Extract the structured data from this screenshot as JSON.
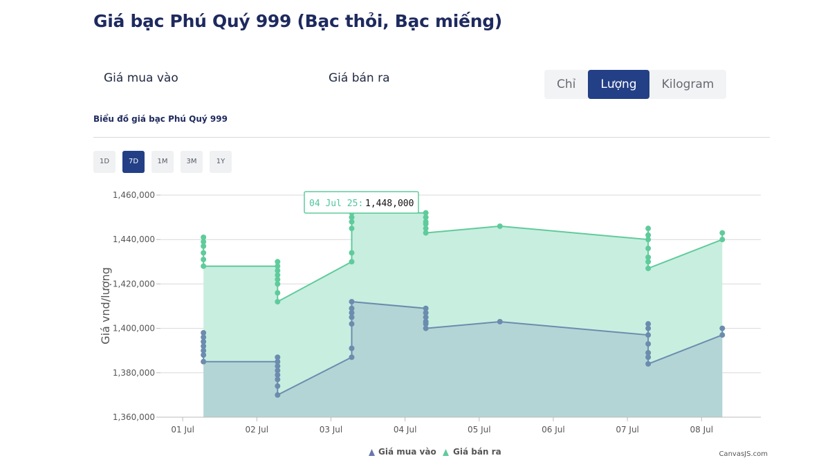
{
  "page": {
    "title": "Giá bạc Phú Quý 999 (Bạc thỏi, Bạc miếng)",
    "buy_label": "Giá mua vào",
    "sell_label": "Giá bán ra",
    "units": [
      "Chỉ",
      "Lượng",
      "Kilogram"
    ],
    "active_unit": "Lượng",
    "chart_subtitle": "Biểu đồ giá bạc Phú Quý 999",
    "ranges": [
      "1D",
      "7D",
      "1M",
      "3M",
      "1Y"
    ],
    "active_range": "7D",
    "credit": "CanvasJS.com"
  },
  "colors": {
    "buy": "#6b8cae",
    "buy_fill": "#b1d2d4",
    "sell": "#5fcb9b",
    "sell_fill": "#c8eee0",
    "active": "#233f86",
    "buy_marker": "#6a77ad"
  },
  "chart_data": {
    "type": "area",
    "title": "",
    "xlabel": "",
    "ylabel": "Giá vnd/lượng",
    "ylim": [
      1360000,
      1460000
    ],
    "yticks": [
      1360000,
      1380000,
      1400000,
      1420000,
      1440000,
      1460000
    ],
    "ytick_labels": [
      "1,360,000",
      "1,380,000",
      "1,400,000",
      "1,420,000",
      "1,440,000",
      "1,460,000"
    ],
    "xlim": [
      0.7,
      8.8
    ],
    "xticks": [
      1,
      2,
      3,
      4,
      5,
      6,
      7,
      8
    ],
    "xtick_labels": [
      "01 Jul",
      "02 Jul",
      "03 Jul",
      "04 Jul",
      "05 Jul",
      "06 Jul",
      "07 Jul",
      "08 Jul"
    ],
    "legend_position": "bottom",
    "grid": true,
    "series": [
      {
        "name": "Giá bán ra",
        "x": [
          1.28,
          1.28,
          1.28,
          1.28,
          1.28,
          1.28,
          2.28,
          2.28,
          2.28,
          2.28,
          2.28,
          2.28,
          2.28,
          2.28,
          3.28,
          3.28,
          3.28,
          3.28,
          3.28,
          3.28,
          4.28,
          4.28,
          4.28,
          4.28,
          4.28,
          4.28,
          5.28,
          7.28,
          7.28,
          7.28,
          7.28,
          7.28,
          7.28,
          7.28,
          8.28,
          8.28
        ],
        "values": [
          1441000,
          1439000,
          1437000,
          1434000,
          1431000,
          1428000,
          1428000,
          1430000,
          1426000,
          1424000,
          1422000,
          1420000,
          1416000,
          1412000,
          1430000,
          1434000,
          1445000,
          1448000,
          1450000,
          1452000,
          1452000,
          1450000,
          1448000,
          1447000,
          1445000,
          1443000,
          1446000,
          1440000,
          1442000,
          1445000,
          1436000,
          1432000,
          1430000,
          1427000,
          1440000,
          1443000
        ]
      },
      {
        "name": "Giá mua vào",
        "x": [
          1.28,
          1.28,
          1.28,
          1.28,
          1.28,
          1.28,
          1.28,
          2.28,
          2.28,
          2.28,
          2.28,
          2.28,
          2.28,
          2.28,
          2.28,
          3.28,
          3.28,
          3.28,
          3.28,
          3.28,
          3.28,
          3.28,
          4.28,
          4.28,
          4.28,
          4.28,
          4.28,
          4.28,
          5.28,
          7.28,
          7.28,
          7.28,
          7.28,
          7.28,
          7.28,
          7.28,
          8.28,
          8.28
        ],
        "values": [
          1398000,
          1396000,
          1394000,
          1392000,
          1390000,
          1388000,
          1385000,
          1385000,
          1387000,
          1383000,
          1381000,
          1379000,
          1377000,
          1374000,
          1370000,
          1387000,
          1391000,
          1402000,
          1405000,
          1407000,
          1409000,
          1412000,
          1409000,
          1407000,
          1405000,
          1403000,
          1402000,
          1400000,
          1403000,
          1397000,
          1400000,
          1402000,
          1393000,
          1389000,
          1387000,
          1384000,
          1397000,
          1400000
        ]
      }
    ],
    "tooltip": {
      "label": "04 Jul 25:",
      "value": "1,448,000"
    }
  }
}
